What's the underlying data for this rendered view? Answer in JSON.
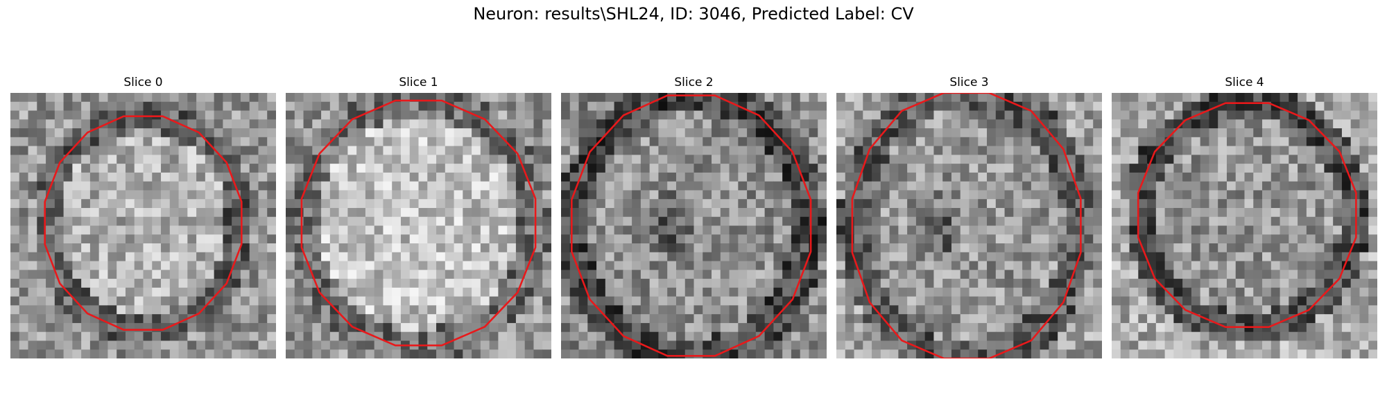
{
  "figure": {
    "title": "Neuron: results\\SHL24, ID: 3046, Predicted Label: CV"
  },
  "contour_color": "#e8191b",
  "slices": [
    {
      "title": "Slice 0"
    },
    {
      "title": "Slice 1"
    },
    {
      "title": "Slice 2"
    },
    {
      "title": "Slice 3"
    },
    {
      "title": "Slice 4"
    }
  ]
}
